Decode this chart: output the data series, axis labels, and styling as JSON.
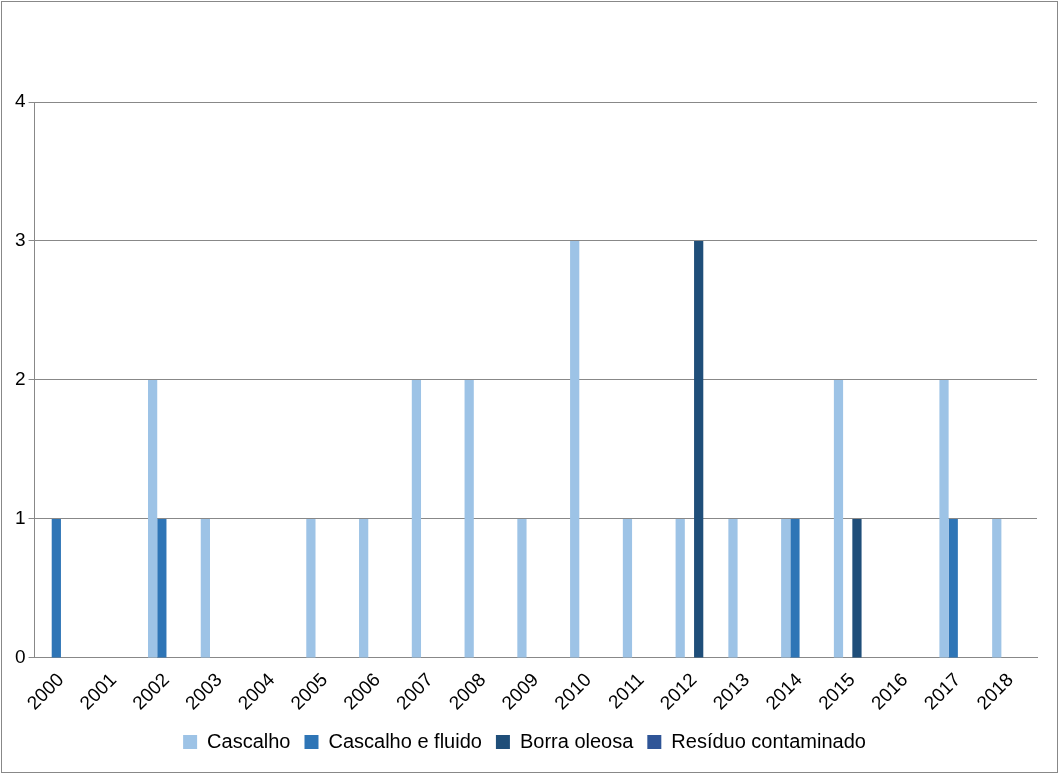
{
  "chart_data": {
    "type": "bar",
    "categories": [
      "2000",
      "2001",
      "2002",
      "2003",
      "2004",
      "2005",
      "2006",
      "2007",
      "2008",
      "2009",
      "2010",
      "2011",
      "2012",
      "2013",
      "2014",
      "2015",
      "2016",
      "2017",
      "2018"
    ],
    "series": [
      {
        "name": "Cascalho",
        "color": "#9dc3e6",
        "values": [
          0,
          0,
          2,
          1,
          0,
          1,
          1,
          2,
          2,
          1,
          3,
          1,
          1,
          1,
          1,
          2,
          0,
          2,
          1
        ]
      },
      {
        "name": "Cascalho e fluido",
        "color": "#2e75b6",
        "values": [
          1,
          0,
          1,
          0,
          0,
          0,
          0,
          0,
          0,
          0,
          0,
          0,
          0,
          0,
          1,
          0,
          0,
          1,
          0
        ]
      },
      {
        "name": "Borra oleosa",
        "color": "#1f4e79",
        "values": [
          0,
          0,
          0,
          0,
          0,
          0,
          0,
          0,
          0,
          0,
          0,
          0,
          3,
          0,
          0,
          1,
          0,
          0,
          0
        ]
      },
      {
        "name": "Resíduo contaminado",
        "color": "#2f5597",
        "values": [
          0,
          0,
          0,
          0,
          0,
          0,
          0,
          0,
          0,
          0,
          0,
          0,
          0,
          0,
          0,
          0,
          0,
          0,
          0
        ]
      }
    ],
    "ylim": [
      0,
      4
    ],
    "yticks": [
      0,
      1,
      2,
      3,
      4
    ],
    "grid": "y",
    "legend": "bottom"
  }
}
